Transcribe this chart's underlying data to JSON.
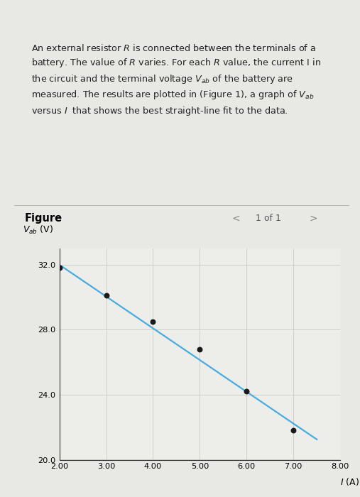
{
  "title_text_lines": [
    "An external resistor R is connected between the terminals of a",
    "battery. The value of R varies. For each R value, the current I in",
    "the circuit and the terminal voltage Vₐₕ of the battery are",
    "measured. The results are plotted in (Figure 1), a graph of Vₐₕ",
    "versus I that shows the best straight-line fit to the data."
  ],
  "figure_label": "Figure",
  "page_label": "1 of 1",
  "data_x": [
    2.0,
    3.0,
    4.0,
    5.0,
    6.0,
    7.0
  ],
  "data_y": [
    31.8,
    30.1,
    28.5,
    26.8,
    24.2,
    21.8
  ],
  "line_x": [
    2.0,
    7.5
  ],
  "line_y": [
    32.0,
    21.25
  ],
  "xlim": [
    2.0,
    8.0
  ],
  "ylim": [
    20.0,
    33.0
  ],
  "xticks": [
    2.0,
    3.0,
    4.0,
    5.0,
    6.0,
    7.0,
    8.0
  ],
  "yticks": [
    20.0,
    24.0,
    28.0,
    32.0
  ],
  "xlabel": "I (A)",
  "ylabel": "Vₐₕ (V)",
  "dot_color": "#1a1a1a",
  "line_color": "#4aabe0",
  "grid_color": "#c8c8c4",
  "plot_bg": "#ededea",
  "text_box_bg": "#c8dfe0",
  "outer_bg": "#e8e8e4",
  "fig_section_bg": "#e8e8e4",
  "separator_color": "#aaaaaa"
}
